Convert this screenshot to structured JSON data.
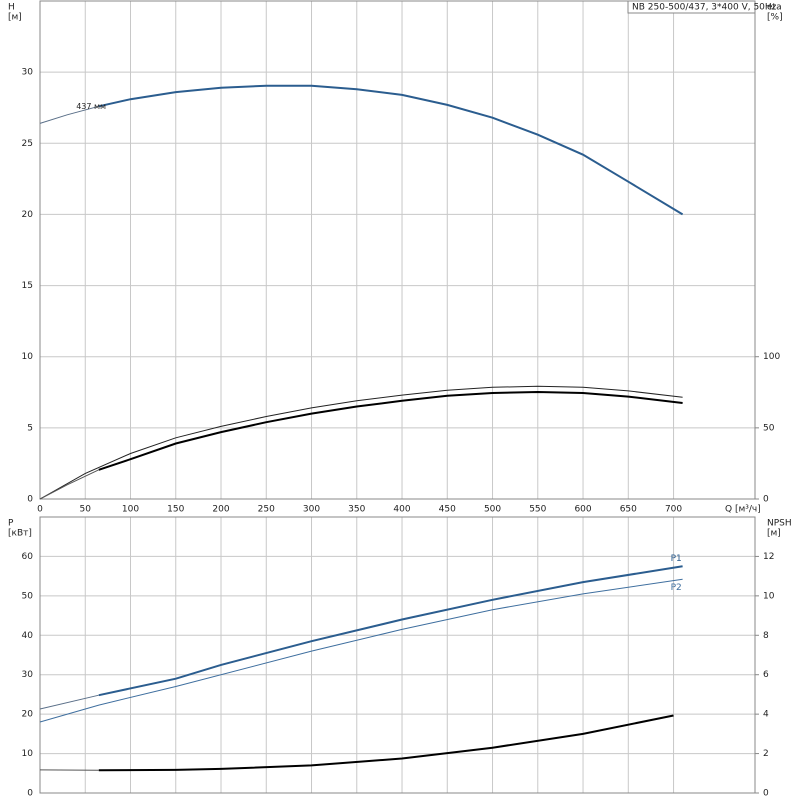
{
  "chart_data": [
    {
      "type": "line",
      "title": "NB 250-500/437, 3*400 V, 50Hz",
      "ylabel": [
        "H",
        "[м]"
      ],
      "y2label": [
        "eta",
        "[%]"
      ],
      "xlabel": "Q [м³/ч]",
      "xlim": [
        0,
        790
      ],
      "xticks": [
        0,
        50,
        100,
        150,
        200,
        250,
        300,
        350,
        400,
        450,
        500,
        550,
        600,
        650,
        700
      ],
      "ylim": [
        0,
        35
      ],
      "yticks": [
        0,
        5,
        10,
        15,
        20,
        25,
        30
      ],
      "y2lim": [
        0,
        350
      ],
      "y2ticks": [
        0,
        50,
        100
      ],
      "grid": true,
      "annotations": [
        {
          "text": "437 мм",
          "x": 40,
          "y": 27.6
        }
      ],
      "series": [
        {
          "color": "#5a6f88",
          "width": 1,
          "x": [
            0,
            30,
            65
          ],
          "values": [
            26.4,
            27.0,
            27.6
          ]
        },
        {
          "color": "#2b5d8f",
          "width": 2,
          "x": [
            65,
            100,
            150,
            200,
            250,
            300,
            350,
            400,
            450,
            500,
            550,
            600,
            650,
            710
          ],
          "values": [
            27.6,
            28.1,
            28.6,
            28.9,
            29.05,
            29.05,
            28.8,
            28.4,
            27.7,
            26.8,
            25.6,
            24.2,
            22.3,
            20.0
          ]
        },
        {
          "color": "#222222",
          "width": 1,
          "axis": "y2",
          "x": [
            0,
            50,
            100,
            150,
            200,
            250,
            300,
            350,
            400,
            450,
            500,
            550,
            600,
            650,
            710
          ],
          "values": [
            0,
            18,
            32,
            43,
            51,
            58,
            64,
            69,
            73,
            76.5,
            78.5,
            79.2,
            78.5,
            76,
            71.5
          ]
        },
        {
          "color": "#555555",
          "width": 1,
          "axis": "y2",
          "x": [
            0,
            30,
            65
          ],
          "values": [
            0,
            10,
            20.5
          ]
        },
        {
          "color": "#000000",
          "width": 2,
          "axis": "y2",
          "x": [
            65,
            100,
            150,
            200,
            250,
            300,
            350,
            400,
            450,
            500,
            550,
            600,
            650,
            710
          ],
          "values": [
            20.5,
            28,
            39,
            47,
            54,
            60,
            65,
            69,
            72.5,
            74.5,
            75.2,
            74.5,
            72,
            67.5
          ]
        }
      ]
    },
    {
      "type": "line",
      "ylabel": [
        "P",
        "[кВт]"
      ],
      "y2label": [
        "NPSH",
        "[м]"
      ],
      "xlim": [
        0,
        790
      ],
      "xgrid": [
        0,
        50,
        100,
        150,
        200,
        250,
        300,
        350,
        400,
        450,
        500,
        550,
        600,
        650,
        700
      ],
      "ylim": [
        0,
        70
      ],
      "yticks": [
        0,
        10,
        20,
        30,
        40,
        50,
        60
      ],
      "y2lim": [
        0,
        14
      ],
      "y2ticks": [
        0,
        2,
        4,
        6,
        8,
        10,
        12
      ],
      "grid": true,
      "series": [
        {
          "color": "#5a6f88",
          "width": 1,
          "x": [
            0,
            65
          ],
          "values": [
            21.3,
            24.8
          ]
        },
        {
          "name": "P1",
          "color": "#2b5d8f",
          "width": 2,
          "x": [
            65,
            150,
            200,
            300,
            400,
            500,
            600,
            710
          ],
          "values": [
            24.8,
            29,
            32.5,
            38.5,
            44,
            49,
            53.5,
            57.5
          ]
        },
        {
          "name": "P2",
          "color": "#3f6f9f",
          "width": 1,
          "x": [
            0,
            65,
            150,
            300,
            400,
            500,
            600,
            710
          ],
          "values": [
            18,
            22.3,
            27,
            36,
            41.5,
            46.5,
            50.5,
            54.2
          ]
        },
        {
          "color": "#555555",
          "width": 1,
          "axis": "y2",
          "x": [
            0,
            65
          ],
          "values": [
            1.17,
            1.15
          ]
        },
        {
          "color": "#000000",
          "width": 2,
          "axis": "y2",
          "x": [
            65,
            150,
            200,
            300,
            400,
            500,
            600,
            700
          ],
          "values": [
            1.15,
            1.17,
            1.22,
            1.4,
            1.75,
            2.3,
            3.0,
            3.93
          ]
        }
      ]
    }
  ]
}
